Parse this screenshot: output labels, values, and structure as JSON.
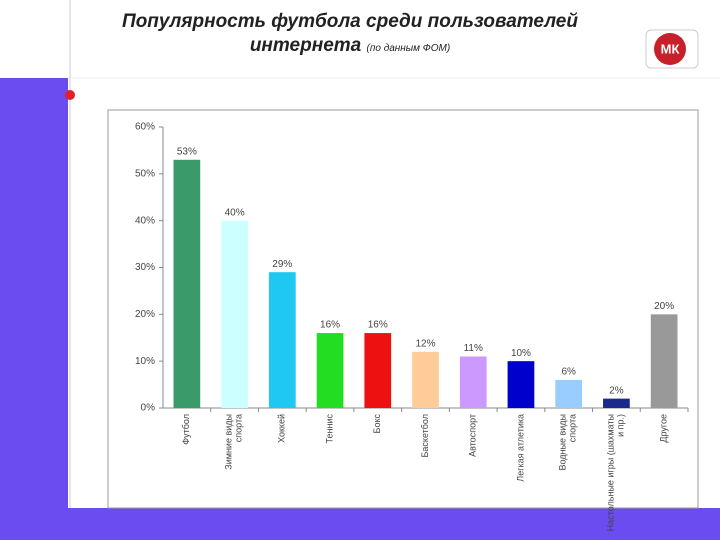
{
  "logo": "МК",
  "chart_data": {
    "type": "bar",
    "title": "Популярность футбола среди пользователей интернета",
    "subtitle": "(по данным ФОМ)",
    "categories": [
      "Футбол",
      "Зимние виды спорта",
      "Хоккей",
      "Теннис",
      "Бокс",
      "Баскетбол",
      "Автоспорт",
      "Легкая атлетика",
      "Водные виды спорта",
      "Настольные игры (шахматы и пр.)",
      "Другое"
    ],
    "values": [
      53,
      40,
      29,
      16,
      16,
      12,
      11,
      10,
      6,
      2,
      20
    ],
    "value_labels": [
      "53%",
      "40%",
      "29%",
      "16%",
      "16%",
      "12%",
      "11%",
      "10%",
      "6%",
      "2%",
      "20%"
    ],
    "colors": [
      "#3a9a6a",
      "#ccffff",
      "#1ec8f0",
      "#22dd22",
      "#ee1111",
      "#ffcc99",
      "#cc99ff",
      "#0000cc",
      "#99ccff",
      "#1a2a8a",
      "#999999"
    ],
    "ylim": [
      0,
      60
    ],
    "yticks": [
      {
        "value": 0,
        "label": "0%"
      },
      {
        "value": 10,
        "label": "10%"
      },
      {
        "value": 20,
        "label": "20%"
      },
      {
        "value": 30,
        "label": "30%"
      },
      {
        "value": 40,
        "label": "40%"
      },
      {
        "value": 50,
        "label": "50%"
      },
      {
        "value": 60,
        "label": "60%"
      }
    ],
    "grid": false
  }
}
